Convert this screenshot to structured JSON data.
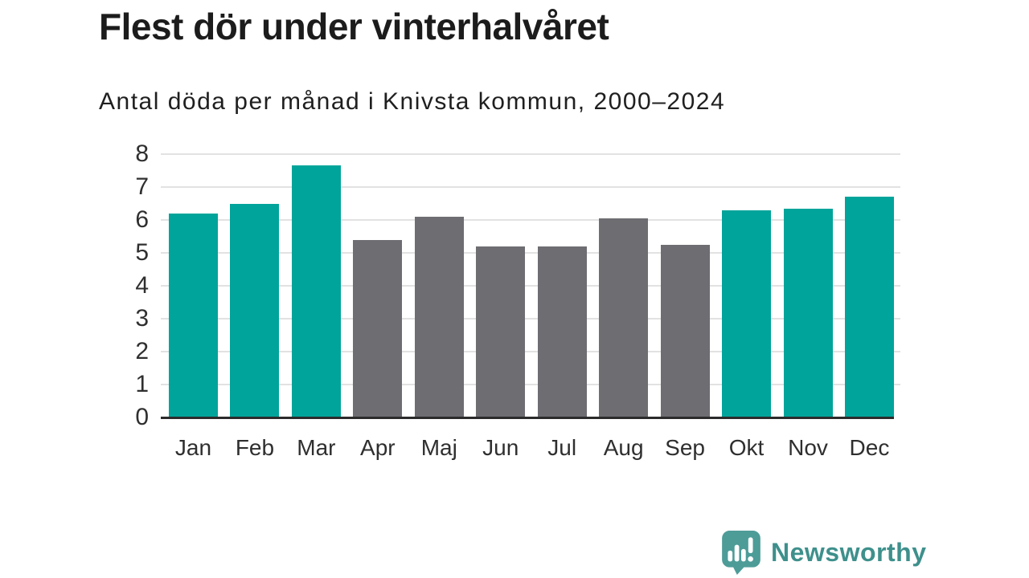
{
  "title": "Flest dör under vinterhalvåret",
  "subtitle": "Antal döda per månad i Knivsta kommun, 2000–2024",
  "branding": {
    "name": "Newsworthy",
    "icon": "newsworthy-speech-bubble-chart-icon",
    "icon_color": "#4d9c98",
    "text_color": "#3e908c"
  },
  "colors": {
    "winter_bar": "#00a49a",
    "summer_bar": "#6e6d72",
    "gridline": "#e2e2e2",
    "axis_line": "#2b2b2b",
    "tick_label": "#2f2f2f"
  },
  "chart_data": {
    "type": "bar",
    "title": "Flest dör under vinterhalvåret",
    "subtitle": "Antal döda per månad i Knivsta kommun, 2000–2024",
    "categories": [
      "Jan",
      "Feb",
      "Mar",
      "Apr",
      "Maj",
      "Jun",
      "Jul",
      "Aug",
      "Sep",
      "Okt",
      "Nov",
      "Dec"
    ],
    "values": [
      6.2,
      6.5,
      7.65,
      5.4,
      6.1,
      5.2,
      5.2,
      6.05,
      5.25,
      6.3,
      6.35,
      6.7
    ],
    "bar_colors": [
      "#00a49a",
      "#00a49a",
      "#00a49a",
      "#6e6d72",
      "#6e6d72",
      "#6e6d72",
      "#6e6d72",
      "#6e6d72",
      "#6e6d72",
      "#00a49a",
      "#00a49a",
      "#00a49a"
    ],
    "xlabel": "",
    "ylabel": "",
    "ylim": [
      0,
      8
    ],
    "yticks": [
      0,
      1,
      2,
      3,
      4,
      5,
      6,
      7,
      8
    ],
    "grid": "horizontal",
    "legend": "none"
  }
}
